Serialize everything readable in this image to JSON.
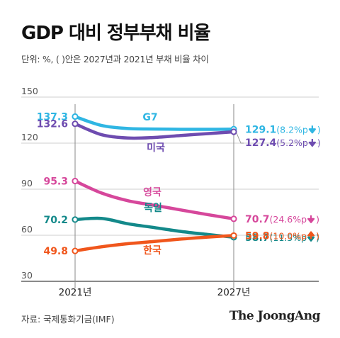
{
  "header": {
    "title": "GDP 대비 정부부채 비율",
    "subtitle": "단위: %, ( )안은 2027년과 2021년 부채 비율 차이"
  },
  "footer": {
    "source": "자료: 국제통화기금(IMF)",
    "brand": "The JoongAng"
  },
  "chart_data": {
    "type": "line",
    "title": "GDP 대비 정부부채 비율",
    "x": [
      "2021년",
      "2027년"
    ],
    "ylim": [
      30,
      150
    ],
    "yticks": [
      30,
      60,
      90,
      120,
      150
    ],
    "grid": true,
    "series": [
      {
        "name": "G7",
        "color": "#2fb6e3",
        "start": 137.3,
        "end": 129.1,
        "start_label": "137.3",
        "end_label": "129.1",
        "diff": "(8.2%p",
        "dir": "down",
        "path": [
          [
            2021,
            137.3
          ],
          [
            2022,
            131.5
          ],
          [
            2023,
            129.5
          ],
          [
            2024,
            129.2
          ],
          [
            2025,
            129.0
          ],
          [
            2026,
            129.0
          ],
          [
            2027,
            129.1
          ]
        ]
      },
      {
        "name": "미국",
        "color": "#6e4cb0",
        "start": 132.6,
        "end": 127.4,
        "start_label": "132.6",
        "end_label": "127.4",
        "diff": "(5.2%p",
        "dir": "down",
        "path": [
          [
            2021,
            132.6
          ],
          [
            2022,
            125.5
          ],
          [
            2023,
            123.3
          ],
          [
            2024,
            123.7
          ],
          [
            2025,
            125.0
          ],
          [
            2026,
            126.2
          ],
          [
            2027,
            127.4
          ]
        ]
      },
      {
        "name": "영국",
        "color": "#d6479b",
        "start": 95.3,
        "end": 70.7,
        "start_label": "95.3",
        "end_label": "70.7",
        "diff": "(24.6%p",
        "dir": "down",
        "path": [
          [
            2021,
            95.3
          ],
          [
            2022,
            87.5
          ],
          [
            2023,
            82.5
          ],
          [
            2024,
            79.5
          ],
          [
            2025,
            76.5
          ],
          [
            2026,
            73.5
          ],
          [
            2027,
            70.7
          ]
        ]
      },
      {
        "name": "독일",
        "color": "#13898a",
        "start": 70.2,
        "end": 58.7,
        "start_label": "70.2",
        "end_label": "58.7",
        "diff": "(11.5%p",
        "dir": "down",
        "path": [
          [
            2021,
            70.2
          ],
          [
            2022,
            71.0
          ],
          [
            2023,
            67.5
          ],
          [
            2024,
            65.0
          ],
          [
            2025,
            62.5
          ],
          [
            2026,
            60.5
          ],
          [
            2027,
            58.7
          ]
        ]
      },
      {
        "name": "한국",
        "color": "#f0561c",
        "start": 49.8,
        "end": 59.8,
        "start_label": "49.8",
        "end_label": "59.8",
        "diff": "(10.0%p",
        "dir": "up",
        "path": [
          [
            2021,
            49.8
          ],
          [
            2022,
            52.5
          ],
          [
            2023,
            54.5
          ],
          [
            2024,
            56.0
          ],
          [
            2025,
            57.5
          ],
          [
            2026,
            58.8
          ],
          [
            2027,
            59.8
          ]
        ]
      }
    ]
  }
}
